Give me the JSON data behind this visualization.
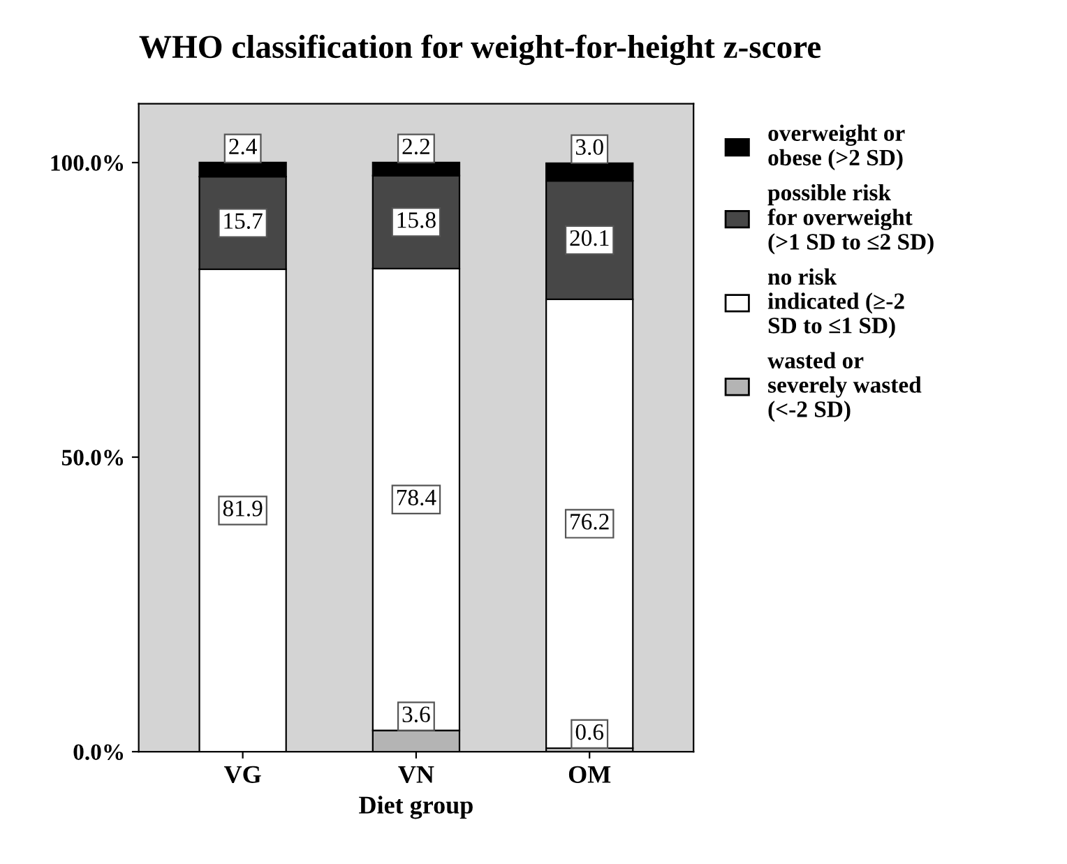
{
  "chart_data": {
    "type": "bar",
    "stacked": true,
    "title": "WHO classification for weight-for-height z-score",
    "xlabel": "Diet group",
    "categories": [
      "VG",
      "VN",
      "OM"
    ],
    "series": [
      {
        "name": "wasted or severely wasted (<-2 SD)",
        "color": "#b4b4b4",
        "values": [
          0,
          3.6,
          0.6
        ],
        "value_labels": [
          null,
          "3.6",
          "0.6"
        ]
      },
      {
        "name": "no risk indicated (≥-2 SD to ≤1 SD)",
        "color": "#ffffff",
        "values": [
          81.9,
          78.4,
          76.2
        ],
        "value_labels": [
          "81.9",
          "78.4",
          "76.2"
        ]
      },
      {
        "name": "possible risk for overweight (>1 SD to ≤2 SD)",
        "color": "#474747",
        "values": [
          15.7,
          15.8,
          20.1
        ],
        "value_labels": [
          "15.7",
          "15.8",
          "20.1"
        ]
      },
      {
        "name": "overweight or obese (>2 SD)",
        "color": "#000000",
        "values": [
          2.4,
          2.2,
          3.0
        ],
        "value_labels": [
          "2.4",
          "2.2",
          "3.0"
        ]
      }
    ],
    "ylim": [
      0,
      110
    ],
    "yticks": [
      {
        "value": 0,
        "label": "0.0%"
      },
      {
        "value": 50,
        "label": "50.0%"
      },
      {
        "value": 100,
        "label": "100.0%"
      }
    ],
    "grid": false,
    "legend": "right"
  }
}
